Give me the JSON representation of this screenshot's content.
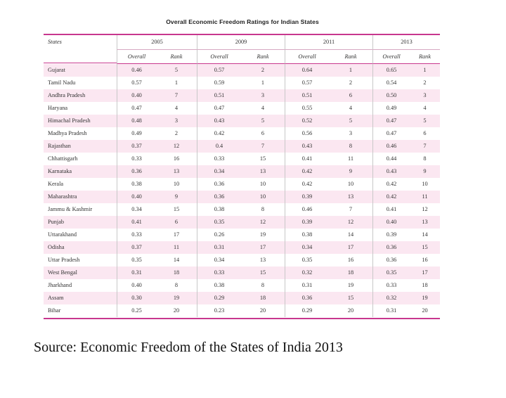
{
  "title": "Overall Economic Freedom Ratings for Indian States",
  "header": {
    "states_label": "States",
    "years": [
      "2005",
      "2009",
      "2011",
      "2013"
    ],
    "sub_labels": [
      "Overall",
      "Rank",
      "Overall",
      "Rank",
      "Overall",
      "Rank",
      "Overall",
      "Rank"
    ]
  },
  "rows": [
    {
      "state": "Gujarat",
      "v": [
        "0.46",
        "5",
        "0.57",
        "2",
        "0.64",
        "1",
        "0.65",
        "1"
      ]
    },
    {
      "state": "Tamil Nadu",
      "v": [
        "0.57",
        "1",
        "0.59",
        "1",
        "0.57",
        "2",
        "0.54",
        "2"
      ]
    },
    {
      "state": "Andhra Pradesh",
      "v": [
        "0.40",
        "7",
        "0.51",
        "3",
        "0.51",
        "6",
        "0.50",
        "3"
      ]
    },
    {
      "state": "Haryana",
      "v": [
        "0.47",
        "4",
        "0.47",
        "4",
        "0.55",
        "4",
        "0.49",
        "4"
      ]
    },
    {
      "state": "Himachal Pradesh",
      "v": [
        "0.48",
        "3",
        "0.43",
        "5",
        "0.52",
        "5",
        "0.47",
        "5"
      ]
    },
    {
      "state": "Madhya Pradesh",
      "v": [
        "0.49",
        "2",
        "0.42",
        "6",
        "0.56",
        "3",
        "0.47",
        "6"
      ]
    },
    {
      "state": "Rajasthan",
      "v": [
        "0.37",
        "12",
        "0.4",
        "7",
        "0.43",
        "8",
        "0.46",
        "7"
      ]
    },
    {
      "state": "Chhattisgarh",
      "v": [
        "0.33",
        "16",
        "0.33",
        "15",
        "0.41",
        "11",
        "0.44",
        "8"
      ]
    },
    {
      "state": "Karnataka",
      "v": [
        "0.36",
        "13",
        "0.34",
        "13",
        "0.42",
        "9",
        "0.43",
        "9"
      ]
    },
    {
      "state": "Kerala",
      "v": [
        "0.38",
        "10",
        "0.36",
        "10",
        "0.42",
        "10",
        "0.42",
        "10"
      ]
    },
    {
      "state": "Maharashtra",
      "v": [
        "0.40",
        "9",
        "0.36",
        "10",
        "0.39",
        "13",
        "0.42",
        "11"
      ]
    },
    {
      "state": "Jammu & Kashmir",
      "v": [
        "0.34",
        "15",
        "0.38",
        "8",
        "0.46",
        "7",
        "0.41",
        "12"
      ]
    },
    {
      "state": "Punjab",
      "v": [
        "0.41",
        "6",
        "0.35",
        "12",
        "0.39",
        "12",
        "0.40",
        "13"
      ]
    },
    {
      "state": "Uttarakhand",
      "v": [
        "0.33",
        "17",
        "0.26",
        "19",
        "0.38",
        "14",
        "0.39",
        "14"
      ]
    },
    {
      "state": "Odisha",
      "v": [
        "0.37",
        "11",
        "0.31",
        "17",
        "0.34",
        "17",
        "0.36",
        "15"
      ]
    },
    {
      "state": "Uttar Pradesh",
      "v": [
        "0.35",
        "14",
        "0.34",
        "13",
        "0.35",
        "16",
        "0.36",
        "16"
      ]
    },
    {
      "state": "West Bengal",
      "v": [
        "0.31",
        "18",
        "0.33",
        "15",
        "0.32",
        "18",
        "0.35",
        "17"
      ]
    },
    {
      "state": "Jharkhand",
      "v": [
        "0.40",
        "8",
        "0.38",
        "8",
        "0.31",
        "19",
        "0.33",
        "18"
      ]
    },
    {
      "state": "Assam",
      "v": [
        "0.30",
        "19",
        "0.29",
        "18",
        "0.36",
        "15",
        "0.32",
        "19"
      ]
    },
    {
      "state": "Bihar",
      "v": [
        "0.25",
        "20",
        "0.23",
        "20",
        "0.29",
        "20",
        "0.31",
        "20"
      ]
    }
  ],
  "source": "Source: Economic Freedom of the States of India 2013",
  "colors": {
    "accent_rule": "#c8378e",
    "stripe": "#fbe7f1"
  }
}
